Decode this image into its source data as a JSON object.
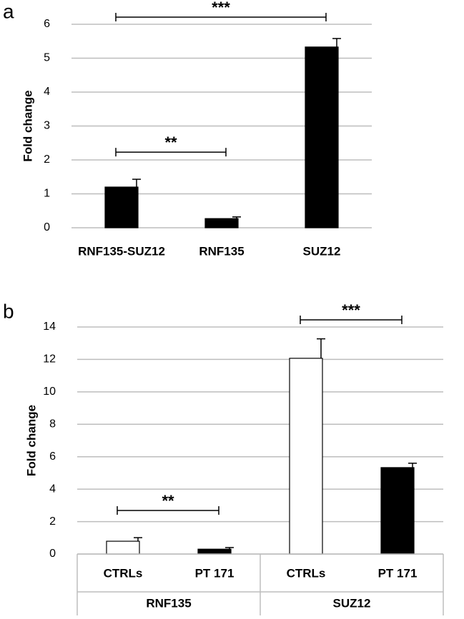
{
  "chart_data": [
    {
      "type": "bar",
      "panel": "a",
      "y_label": "Fold change",
      "categories": [
        "RNF135-SUZ12",
        "RNF135",
        "SUZ12"
      ],
      "values": [
        1.2,
        0.27,
        5.33
      ],
      "errors": [
        0.23,
        0.05,
        0.25
      ],
      "colors": [
        "#000000",
        "#000000",
        "#000000"
      ],
      "ylim": [
        0,
        6
      ],
      "yticks": [
        0,
        1,
        2,
        3,
        4,
        5,
        6
      ],
      "grid": true,
      "annotations": [
        {
          "text": "***",
          "from": "RNF135-SUZ12",
          "to": "SUZ12"
        },
        {
          "text": "**",
          "from": "RNF135-SUZ12",
          "to": "RNF135"
        }
      ]
    },
    {
      "type": "grouped_bar",
      "panel": "b",
      "y_label": "Fold change",
      "groups": [
        "RNF135",
        "SUZ12"
      ],
      "categories": [
        "CTRLs",
        "PT 171",
        "CTRLs",
        "PT 171"
      ],
      "values": [
        0.79,
        0.3,
        12.07,
        5.33
      ],
      "errors": [
        0.22,
        0.1,
        1.2,
        0.27
      ],
      "colors": [
        "#ffffff",
        "#000000",
        "#ffffff",
        "#000000"
      ],
      "ylim": [
        0,
        14
      ],
      "yticks": [
        0,
        2,
        4,
        6,
        8,
        10,
        12,
        14
      ],
      "grid": true,
      "annotations": [
        {
          "text": "**",
          "group": "RNF135"
        },
        {
          "text": "***",
          "group": "SUZ12"
        }
      ]
    }
  ]
}
